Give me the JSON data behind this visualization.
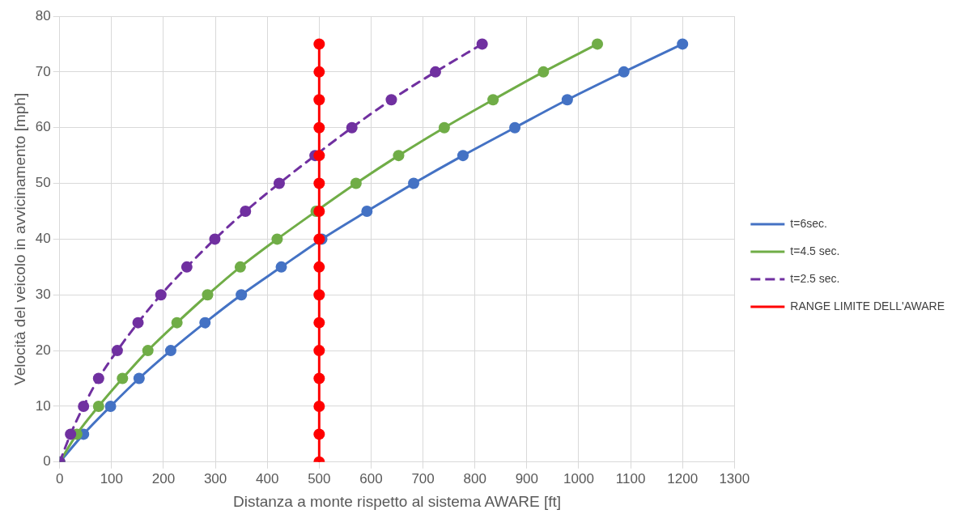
{
  "chart_data": {
    "type": "line",
    "xlabel": "Distanza a monte rispetto al sistema AWARE [ft]",
    "ylabel": "Velocità del veicolo in avvicinamento [mph]",
    "xlim": [
      0,
      1300
    ],
    "xticks": [
      0,
      100,
      200,
      300,
      400,
      500,
      600,
      700,
      800,
      900,
      1000,
      1100,
      1200,
      1300
    ],
    "ylim": [
      0,
      80
    ],
    "yticks": [
      0,
      10,
      20,
      30,
      40,
      50,
      60,
      70,
      80
    ],
    "grid": true,
    "legend": "right",
    "marker": "circle",
    "series": [
      {
        "name": "t=6sec.",
        "color": "#4472c4",
        "line_style": "solid",
        "x": [
          0,
          46,
          98,
          153,
          214,
          280,
          350,
          427,
          505,
          592,
          682,
          777,
          877,
          978,
          1087,
          1200
        ],
        "values": [
          0,
          5,
          10,
          15,
          20,
          25,
          30,
          35,
          40,
          45,
          50,
          55,
          60,
          65,
          70,
          75
        ]
      },
      {
        "name": "t=4.5 sec.",
        "color": "#70ad47",
        "line_style": "solid",
        "x": [
          0,
          33,
          75,
          121,
          170,
          226,
          285,
          348,
          419,
          494,
          571,
          653,
          741,
          835,
          932,
          1036
        ],
        "values": [
          0,
          5,
          10,
          15,
          20,
          25,
          30,
          35,
          40,
          45,
          50,
          55,
          60,
          65,
          70,
          75
        ]
      },
      {
        "name": "t=2.5 sec.",
        "color": "#7030a0",
        "line_style": "dashed",
        "x": [
          0,
          21,
          46,
          75,
          111,
          151,
          195,
          245,
          299,
          358,
          423,
          492,
          563,
          639,
          724,
          814
        ],
        "values": [
          0,
          5,
          10,
          15,
          20,
          25,
          30,
          35,
          40,
          45,
          50,
          55,
          60,
          65,
          70,
          75
        ]
      },
      {
        "name": "RANGE LIMITE DELL'AWARE",
        "color": "#ff0000",
        "line_style": "solid",
        "x": [
          500,
          500,
          500,
          500,
          500,
          500,
          500,
          500,
          500,
          500,
          500,
          500,
          500,
          500,
          500,
          500
        ],
        "values": [
          0,
          5,
          10,
          15,
          20,
          25,
          30,
          35,
          40,
          45,
          50,
          55,
          60,
          65,
          70,
          75
        ]
      }
    ]
  }
}
